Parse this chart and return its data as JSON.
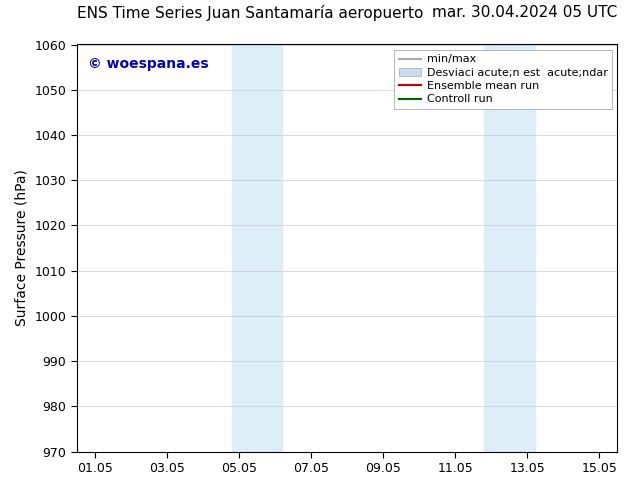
{
  "title_left": "ENS Time Series Juan Santamaría aeropuerto",
  "title_right": "mar. 30.04.2024 05 UTC",
  "ylabel": "Surface Pressure (hPa)",
  "ylim": [
    970,
    1060
  ],
  "yticks": [
    970,
    980,
    990,
    1000,
    1010,
    1020,
    1030,
    1040,
    1050,
    1060
  ],
  "xtick_labels": [
    "01.05",
    "03.05",
    "05.05",
    "07.05",
    "09.05",
    "11.05",
    "13.05",
    "15.05"
  ],
  "xtick_positions": [
    0,
    2,
    4,
    6,
    8,
    10,
    12,
    14
  ],
  "xmin": -0.5,
  "xmax": 14.5,
  "shaded_regions": [
    {
      "xmin": 3.8,
      "xmax": 5.2,
      "color": "#ddeef8"
    },
    {
      "xmin": 10.8,
      "xmax": 12.2,
      "color": "#ddeef8"
    }
  ],
  "watermark_text": "© woespana.es",
  "watermark_color": "#0000cc",
  "legend_label1": "min/max",
  "legend_label2": "Desviaci acute;n est  acute;ndar",
  "legend_label3": "Ensemble mean run",
  "legend_label4": "Controll run",
  "legend_color1": "#aaaaaa",
  "legend_color2": "#c8ddf0",
  "legend_color3": "#cc0000",
  "legend_color4": "#006600",
  "background_color": "#ffffff",
  "plot_bg_color": "#ffffff",
  "title_fontsize": 11,
  "axis_label_fontsize": 10,
  "tick_fontsize": 9,
  "legend_fontsize": 8
}
